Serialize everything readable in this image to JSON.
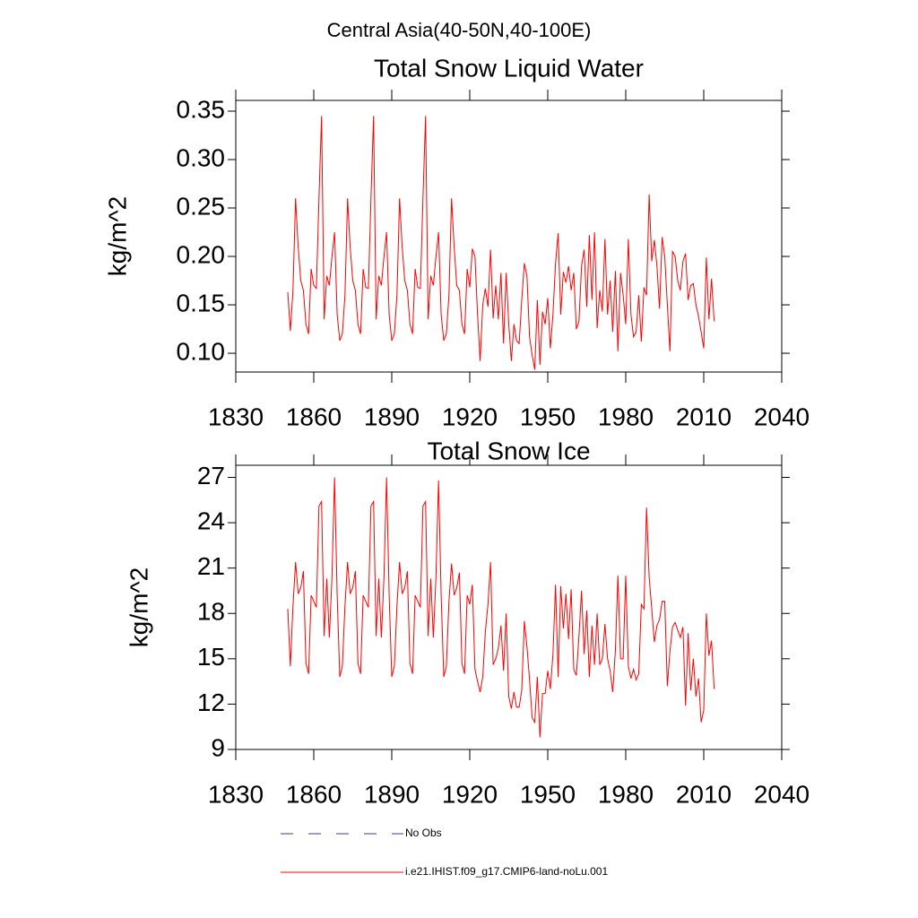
{
  "title": "Central Asia(40-50N,40-100E)",
  "legend": [
    {
      "name": "No Obs",
      "color": "#3c3c8c",
      "dash": "dashed"
    },
    {
      "name": "i.e21.IHIST.f09_g17.CMIP6-land-noLu.001",
      "color": "#ff0000",
      "dash": "solid"
    }
  ],
  "chart_data": [
    {
      "type": "line",
      "title": "Total Snow Liquid Water",
      "ylabel": "kg/m^2",
      "x": [
        1850,
        1851,
        1852,
        1853,
        1854,
        1855,
        1856,
        1857,
        1858,
        1859,
        1860,
        1861,
        1862,
        1863,
        1864,
        1865,
        1866,
        1867,
        1868,
        1869,
        1870,
        1871,
        1872,
        1873,
        1874,
        1875,
        1876,
        1877,
        1878,
        1879,
        1880,
        1881,
        1882,
        1883,
        1884,
        1885,
        1886,
        1887,
        1888,
        1889,
        1890,
        1891,
        1892,
        1893,
        1894,
        1895,
        1896,
        1897,
        1898,
        1899,
        1900,
        1901,
        1902,
        1903,
        1904,
        1905,
        1906,
        1907,
        1908,
        1909,
        1910,
        1911,
        1912,
        1913,
        1914,
        1915,
        1916,
        1917,
        1918,
        1919,
        1920,
        1921,
        1922,
        1923,
        1924,
        1925,
        1926,
        1927,
        1928,
        1929,
        1930,
        1931,
        1932,
        1933,
        1934,
        1935,
        1936,
        1937,
        1938,
        1939,
        1940,
        1941,
        1942,
        1943,
        1944,
        1945,
        1946,
        1947,
        1948,
        1949,
        1950,
        1951,
        1952,
        1953,
        1954,
        1955,
        1956,
        1957,
        1958,
        1959,
        1960,
        1961,
        1962,
        1963,
        1964,
        1965,
        1966,
        1967,
        1968,
        1969,
        1970,
        1971,
        1972,
        1973,
        1974,
        1975,
        1976,
        1977,
        1978,
        1979,
        1980,
        1981,
        1982,
        1983,
        1984,
        1985,
        1986,
        1987,
        1988,
        1989,
        1990,
        1991,
        1992,
        1993,
        1994,
        1995,
        1996,
        1997,
        1998,
        1999,
        2000,
        2001,
        2002,
        2003,
        2004,
        2005,
        2006,
        2007,
        2008,
        2009,
        2010,
        2011,
        2012,
        2013,
        2014
      ],
      "series": [
        {
          "color": "#ff0000",
          "values": [
            0.163,
            0.123,
            0.165,
            0.26,
            0.21,
            0.175,
            0.165,
            0.13,
            0.12,
            0.187,
            0.17,
            0.167,
            0.26,
            0.345,
            0.135,
            0.18,
            0.17,
            0.2,
            0.225,
            0.14,
            0.113,
            0.12,
            0.16,
            0.26,
            0.21,
            0.175,
            0.165,
            0.13,
            0.12,
            0.187,
            0.168,
            0.167,
            0.26,
            0.345,
            0.135,
            0.18,
            0.17,
            0.2,
            0.225,
            0.14,
            0.113,
            0.12,
            0.16,
            0.26,
            0.21,
            0.175,
            0.165,
            0.13,
            0.12,
            0.187,
            0.168,
            0.167,
            0.26,
            0.345,
            0.135,
            0.18,
            0.17,
            0.2,
            0.225,
            0.14,
            0.113,
            0.12,
            0.16,
            0.26,
            0.21,
            0.17,
            0.165,
            0.13,
            0.12,
            0.187,
            0.168,
            0.208,
            0.2,
            0.14,
            0.092,
            0.15,
            0.167,
            0.148,
            0.207,
            0.136,
            0.17,
            0.135,
            0.183,
            0.11,
            0.183,
            0.13,
            0.092,
            0.13,
            0.113,
            0.11,
            0.155,
            0.193,
            0.18,
            0.117,
            0.098,
            0.083,
            0.155,
            0.088,
            0.143,
            0.13,
            0.157,
            0.105,
            0.14,
            0.193,
            0.224,
            0.14,
            0.184,
            0.173,
            0.19,
            0.165,
            0.183,
            0.125,
            0.133,
            0.19,
            0.207,
            0.148,
            0.222,
            0.155,
            0.225,
            0.126,
            0.165,
            0.143,
            0.218,
            0.14,
            0.175,
            0.122,
            0.185,
            0.102,
            0.183,
            0.16,
            0.13,
            0.218,
            0.14,
            0.117,
            0.122,
            0.16,
            0.112,
            0.168,
            0.16,
            0.264,
            0.195,
            0.217,
            0.19,
            0.146,
            0.22,
            0.2,
            0.15,
            0.102,
            0.205,
            0.2,
            0.175,
            0.165,
            0.195,
            0.203,
            0.155,
            0.17,
            0.172,
            0.15,
            0.138,
            0.122,
            0.105,
            0.199,
            0.135,
            0.177,
            0.133
          ]
        }
      ],
      "xlim": [
        1830,
        2040
      ],
      "xticks": [
        1830,
        1860,
        1890,
        1920,
        1950,
        1980,
        2010,
        2040
      ],
      "ylim": [
        0.0806,
        0.3611
      ],
      "yticks": [
        {
          "value": 0.1,
          "label": "0.10"
        },
        0.15,
        {
          "value": 0.2,
          "label": "0.20"
        },
        0.25,
        {
          "value": 0.3,
          "label": "0.30"
        },
        0.35
      ]
    },
    {
      "type": "line",
      "title": "Total Snow Ice",
      "ylabel": "kg/m^2",
      "x": [
        1850,
        1851,
        1852,
        1853,
        1854,
        1855,
        1856,
        1857,
        1858,
        1859,
        1860,
        1861,
        1862,
        1863,
        1864,
        1865,
        1866,
        1867,
        1868,
        1869,
        1870,
        1871,
        1872,
        1873,
        1874,
        1875,
        1876,
        1877,
        1878,
        1879,
        1880,
        1881,
        1882,
        1883,
        1884,
        1885,
        1886,
        1887,
        1888,
        1889,
        1890,
        1891,
        1892,
        1893,
        1894,
        1895,
        1896,
        1897,
        1898,
        1899,
        1900,
        1901,
        1902,
        1903,
        1904,
        1905,
        1906,
        1907,
        1908,
        1909,
        1910,
        1911,
        1912,
        1913,
        1914,
        1915,
        1916,
        1917,
        1918,
        1919,
        1920,
        1921,
        1922,
        1923,
        1924,
        1925,
        1926,
        1927,
        1928,
        1929,
        1930,
        1931,
        1932,
        1933,
        1934,
        1935,
        1936,
        1937,
        1938,
        1939,
        1940,
        1941,
        1942,
        1943,
        1944,
        1945,
        1946,
        1947,
        1948,
        1949,
        1950,
        1951,
        1952,
        1953,
        1954,
        1955,
        1956,
        1957,
        1958,
        1959,
        1960,
        1961,
        1962,
        1963,
        1964,
        1965,
        1966,
        1967,
        1968,
        1969,
        1970,
        1971,
        1972,
        1973,
        1974,
        1975,
        1976,
        1977,
        1978,
        1979,
        1980,
        1981,
        1982,
        1983,
        1984,
        1985,
        1986,
        1987,
        1988,
        1989,
        1990,
        1991,
        1992,
        1993,
        1994,
        1995,
        1996,
        1997,
        1998,
        1999,
        2000,
        2001,
        2002,
        2003,
        2004,
        2005,
        2006,
        2007,
        2008,
        2009,
        2010,
        2011,
        2012,
        2013,
        2014
      ],
      "series": [
        {
          "color": "#ff0000",
          "values": [
            18.3,
            14.5,
            18.5,
            21.4,
            19.3,
            19.7,
            20.8,
            14.7,
            14.0,
            19.2,
            18.8,
            18.4,
            25.1,
            25.4,
            16.5,
            20.3,
            16.4,
            20.4,
            27.0,
            19.2,
            13.8,
            14.5,
            18.5,
            21.4,
            19.3,
            19.7,
            20.8,
            14.7,
            14.0,
            19.2,
            18.8,
            18.4,
            25.1,
            25.4,
            16.5,
            20.3,
            16.4,
            20.4,
            27.0,
            19.2,
            13.8,
            14.5,
            18.5,
            21.4,
            19.3,
            19.7,
            20.8,
            14.7,
            14.0,
            19.2,
            18.8,
            18.4,
            25.1,
            25.4,
            16.5,
            20.3,
            16.4,
            20.4,
            26.8,
            19.2,
            13.8,
            14.5,
            18.8,
            21.3,
            19.2,
            19.7,
            20.7,
            14.7,
            14.0,
            19.2,
            18.6,
            19.9,
            14.3,
            13.5,
            12.8,
            13.8,
            16.8,
            18.6,
            21.4,
            14.6,
            15.0,
            15.7,
            17.2,
            14.2,
            18.0,
            12.5,
            11.7,
            12.8,
            11.8,
            11.8,
            12.9,
            17.5,
            15.8,
            13.6,
            11.1,
            10.8,
            13.8,
            9.8,
            12.7,
            12.7,
            14.2,
            13.0,
            15.3,
            19.9,
            13.8,
            19.8,
            17.0,
            19.3,
            16.3,
            19.6,
            14.3,
            13.9,
            16.5,
            19.5,
            15.3,
            18.2,
            13.8,
            17.2,
            14.6,
            18.0,
            14.6,
            15.0,
            17.3,
            15.0,
            14.2,
            12.8,
            15.5,
            20.5,
            15.0,
            15.0,
            20.5,
            14.5,
            13.7,
            14.3,
            13.6,
            14.0,
            18.6,
            18.3,
            25.0,
            20.4,
            18.3,
            16.1,
            17.2,
            17.6,
            18.8,
            18.8,
            13.2,
            15.5,
            17.1,
            17.4,
            16.9,
            16.4,
            17.1,
            11.9,
            16.7,
            12.9,
            15.0,
            12.5,
            13.7,
            10.8,
            11.6,
            18.0,
            15.2,
            16.2,
            13.0
          ]
        }
      ],
      "xlim": [
        1830,
        2040
      ],
      "xticks": [
        1830,
        1860,
        1890,
        1920,
        1950,
        1980,
        2010,
        2040
      ],
      "ylim": [
        9,
        27.8
      ],
      "yticks": [
        9,
        12,
        15,
        18,
        21,
        24,
        27
      ]
    }
  ]
}
